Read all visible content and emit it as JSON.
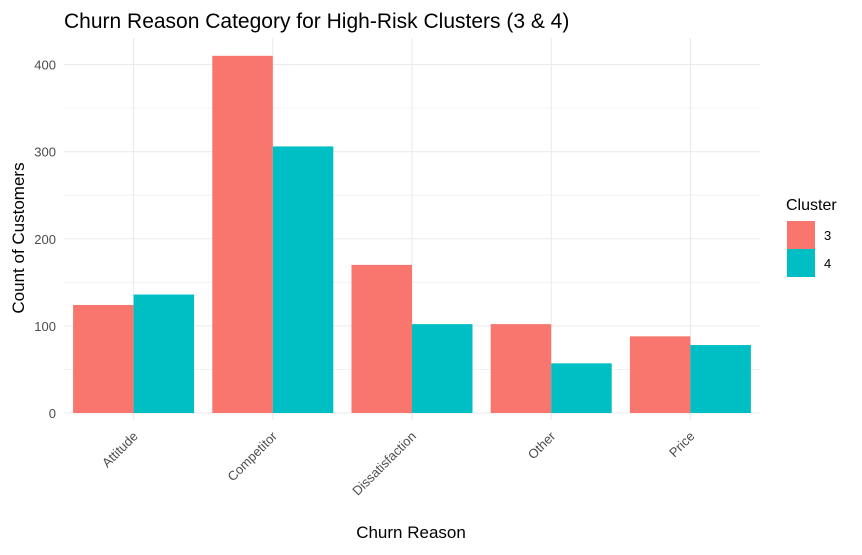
{
  "chart_data": {
    "type": "bar",
    "title": "Churn Reason Category for High-Risk Clusters (3 & 4)",
    "xlabel": "Churn Reason",
    "ylabel": "Count of Customers",
    "categories": [
      "Attitude",
      "Competitor",
      "Dissatisfaction",
      "Other",
      "Price"
    ],
    "series": [
      {
        "name": "3",
        "color": "#F8766D",
        "values": [
          124,
          410,
          170,
          102,
          88
        ]
      },
      {
        "name": "4",
        "color": "#00BFC4",
        "values": [
          136,
          306,
          102,
          57,
          78
        ]
      }
    ],
    "yticks": [
      0,
      100,
      200,
      300,
      400
    ],
    "ylim": [
      0,
      430
    ],
    "grid": true,
    "legend": {
      "title": "Cluster",
      "position": "right"
    }
  }
}
